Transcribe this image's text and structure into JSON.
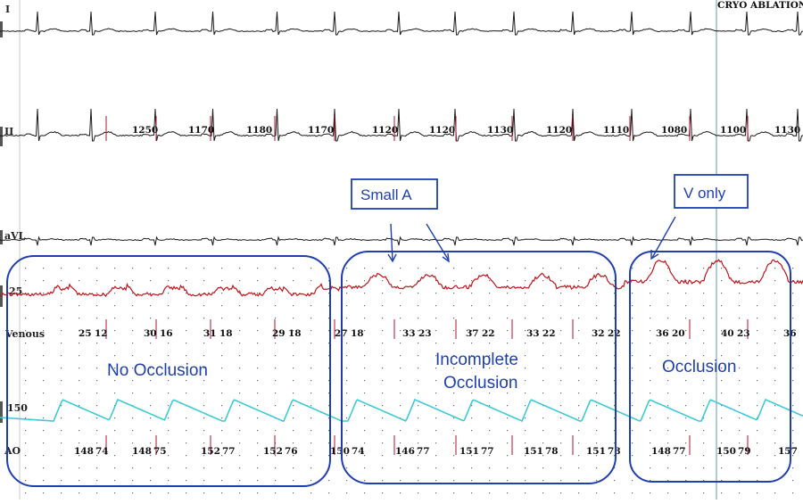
{
  "header": {
    "title": "CRYO ABLATION"
  },
  "channels": {
    "lead1": "I",
    "lead2": "II",
    "avl": "aVL",
    "venous": "Venous",
    "ao": "AO"
  },
  "scales": {
    "venous": "25",
    "ao": "150"
  },
  "rr_intervals": [
    "1250",
    "1170",
    "1180",
    "1170",
    "1120",
    "1120",
    "1130",
    "1120",
    "1110",
    "1080",
    "1100",
    "1130"
  ],
  "venous_readouts": [
    {
      "a": "25",
      "b": "12"
    },
    {
      "a": "30",
      "b": "16"
    },
    {
      "a": "31",
      "b": "18"
    },
    {
      "a": "29",
      "b": "18"
    },
    {
      "a": "27",
      "b": "18"
    },
    {
      "a": "33",
      "b": "23"
    },
    {
      "a": "37",
      "b": "22"
    },
    {
      "a": "33",
      "b": "22"
    },
    {
      "a": "32",
      "b": "22"
    },
    {
      "a": "36",
      "b": "20"
    },
    {
      "a": "40",
      "b": "23"
    },
    {
      "a": "36",
      "b": ""
    }
  ],
  "ao_readouts": [
    {
      "a": "148",
      "b": "74"
    },
    {
      "a": "148",
      "b": "75"
    },
    {
      "a": "152",
      "b": "77"
    },
    {
      "a": "152",
      "b": "76"
    },
    {
      "a": "150",
      "b": "74"
    },
    {
      "a": "146",
      "b": "77"
    },
    {
      "a": "151",
      "b": "77"
    },
    {
      "a": "151",
      "b": "78"
    },
    {
      "a": "151",
      "b": "78"
    },
    {
      "a": "148",
      "b": "77"
    },
    {
      "a": "150",
      "b": "79"
    },
    {
      "a": "157",
      "b": ""
    }
  ],
  "annotations": {
    "no_occlusion": "No Occlusion",
    "incomplete_line1": "Incomplete",
    "incomplete_line2": "Occlusion",
    "occlusion": "Occlusion",
    "small_a": "Small A",
    "v_only": "V only"
  },
  "colors": {
    "ecg": "#1a1a1a",
    "venous": "#c0141c",
    "ao": "#3ec9d6",
    "annotation": "#1f3fb0",
    "marker": "#9ab8c8",
    "dots": "#6b6b6b",
    "tick": "#b01030"
  }
}
